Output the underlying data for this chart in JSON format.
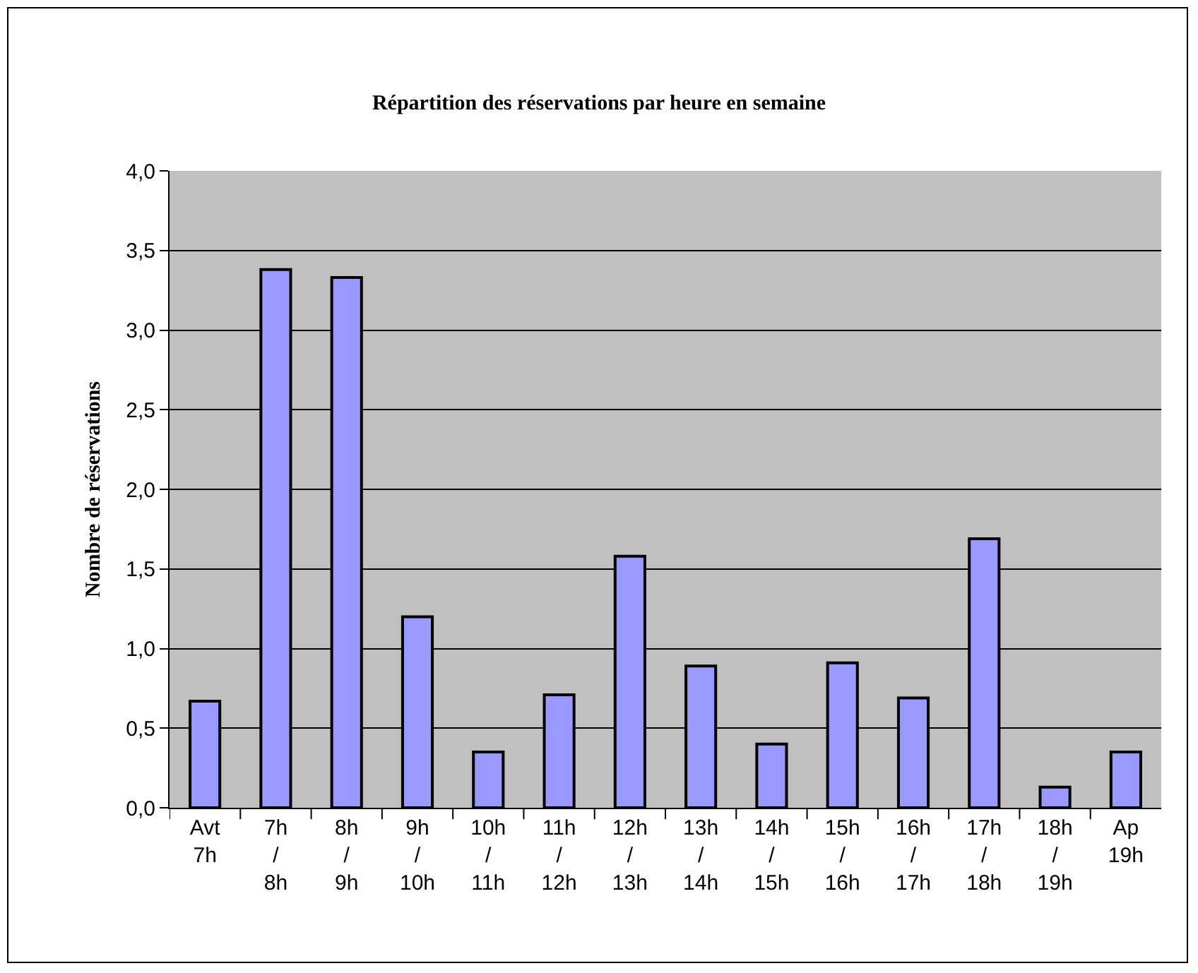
{
  "chart_data": {
    "type": "bar",
    "title": "Répartition des réservations par heure en semaine",
    "ylabel": "Nombre de réservations",
    "categories": [
      "Avt 7h",
      "7h / 8h",
      "8h / 9h",
      "9h / 10h",
      "10h / 11h",
      "11h / 12h",
      "12h / 13h",
      "13h / 14h",
      "14h / 15h",
      "15h / 16h",
      "16h / 17h",
      "17h / 18h",
      "18h / 19h",
      "Ap 19h"
    ],
    "values": [
      0.67,
      3.38,
      3.33,
      1.2,
      0.35,
      0.71,
      1.58,
      0.89,
      0.4,
      0.91,
      0.69,
      1.69,
      0.13,
      0.35
    ],
    "color": "#9999ff",
    "ylim": [
      0,
      4
    ],
    "yticks": [
      {
        "value": 0,
        "label": "0,0"
      },
      {
        "value": 0.5,
        "label": "0,5"
      },
      {
        "value": 1,
        "label": "1,0"
      },
      {
        "value": 1.5,
        "label": "1,5"
      },
      {
        "value": 2,
        "label": "2,0"
      },
      {
        "value": 2.5,
        "label": "2,5"
      },
      {
        "value": 3,
        "label": "3,0"
      },
      {
        "value": 3.5,
        "label": "3,5"
      },
      {
        "value": 4,
        "label": "4,0"
      }
    ],
    "grid": "y"
  }
}
